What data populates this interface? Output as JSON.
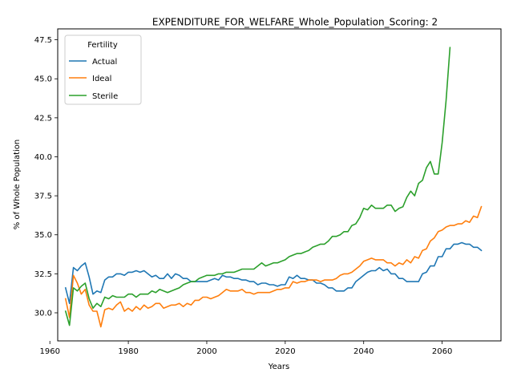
{
  "chart_data": {
    "type": "line",
    "title": "EXPENDITURE_FOR_WELFARE_Whole_Population_Scoring: 2",
    "xlabel": "Years",
    "ylabel": "% of Whole Population",
    "xlim": [
      1962,
      2075
    ],
    "ylim": [
      28.2,
      48.2
    ],
    "xticks": [
      1960,
      1980,
      2000,
      2020,
      2040,
      2060
    ],
    "yticks": [
      30.0,
      32.5,
      35.0,
      37.5,
      40.0,
      42.5,
      45.0,
      47.5
    ],
    "ytick_labels": [
      "30.0",
      "32.5",
      "35.0",
      "37.5",
      "40.0",
      "42.5",
      "45.0",
      "47.5"
    ],
    "grid": false,
    "legend": {
      "title": "Fertility",
      "position": "top-left"
    },
    "series": [
      {
        "name": "Actual",
        "color": "#1f77b4",
        "points": [
          [
            1964,
            31.6
          ],
          [
            1965,
            30.6
          ],
          [
            1966,
            32.9
          ],
          [
            1967,
            32.7
          ],
          [
            1968,
            33.0
          ],
          [
            1969,
            33.2
          ],
          [
            1970,
            32.3
          ],
          [
            1971,
            31.2
          ],
          [
            1972,
            31.4
          ],
          [
            1973,
            31.3
          ],
          [
            1974,
            32.1
          ],
          [
            1975,
            32.3
          ],
          [
            1976,
            32.3
          ],
          [
            1977,
            32.5
          ],
          [
            1978,
            32.5
          ],
          [
            1979,
            32.4
          ],
          [
            1980,
            32.6
          ],
          [
            1981,
            32.6
          ],
          [
            1982,
            32.7
          ],
          [
            1983,
            32.6
          ],
          [
            1984,
            32.7
          ],
          [
            1985,
            32.5
          ],
          [
            1986,
            32.3
          ],
          [
            1987,
            32.4
          ],
          [
            1988,
            32.2
          ],
          [
            1989,
            32.2
          ],
          [
            1990,
            32.5
          ],
          [
            1991,
            32.2
          ],
          [
            1992,
            32.5
          ],
          [
            1993,
            32.4
          ],
          [
            1994,
            32.2
          ],
          [
            1995,
            32.2
          ],
          [
            1996,
            32.0
          ],
          [
            1997,
            32.0
          ],
          [
            1998,
            32.0
          ],
          [
            1999,
            32.0
          ],
          [
            2000,
            32.0
          ],
          [
            2001,
            32.1
          ],
          [
            2002,
            32.2
          ],
          [
            2003,
            32.1
          ],
          [
            2004,
            32.4
          ],
          [
            2005,
            32.3
          ],
          [
            2006,
            32.3
          ],
          [
            2007,
            32.2
          ],
          [
            2008,
            32.2
          ],
          [
            2009,
            32.1
          ],
          [
            2010,
            32.1
          ],
          [
            2011,
            32.0
          ],
          [
            2012,
            32.0
          ],
          [
            2013,
            31.8
          ],
          [
            2014,
            31.9
          ],
          [
            2015,
            31.9
          ],
          [
            2016,
            31.8
          ],
          [
            2017,
            31.8
          ],
          [
            2018,
            31.7
          ],
          [
            2019,
            31.8
          ],
          [
            2020,
            31.8
          ],
          [
            2021,
            32.3
          ],
          [
            2022,
            32.2
          ],
          [
            2023,
            32.4
          ],
          [
            2024,
            32.2
          ],
          [
            2025,
            32.2
          ],
          [
            2026,
            32.1
          ],
          [
            2027,
            32.1
          ],
          [
            2028,
            31.9
          ],
          [
            2029,
            31.9
          ],
          [
            2030,
            31.8
          ],
          [
            2031,
            31.6
          ],
          [
            2032,
            31.6
          ],
          [
            2033,
            31.4
          ],
          [
            2034,
            31.4
          ],
          [
            2035,
            31.4
          ],
          [
            2036,
            31.6
          ],
          [
            2037,
            31.6
          ],
          [
            2038,
            32.0
          ],
          [
            2039,
            32.2
          ],
          [
            2040,
            32.4
          ],
          [
            2041,
            32.6
          ],
          [
            2042,
            32.7
          ],
          [
            2043,
            32.7
          ],
          [
            2044,
            32.9
          ],
          [
            2045,
            32.7
          ],
          [
            2046,
            32.8
          ],
          [
            2047,
            32.5
          ],
          [
            2048,
            32.5
          ],
          [
            2049,
            32.2
          ],
          [
            2050,
            32.2
          ],
          [
            2051,
            32.0
          ],
          [
            2052,
            32.0
          ],
          [
            2053,
            32.0
          ],
          [
            2054,
            32.0
          ],
          [
            2055,
            32.5
          ],
          [
            2056,
            32.6
          ],
          [
            2057,
            33.0
          ],
          [
            2058,
            33.0
          ],
          [
            2059,
            33.6
          ],
          [
            2060,
            33.6
          ],
          [
            2061,
            34.1
          ],
          [
            2062,
            34.1
          ],
          [
            2063,
            34.4
          ],
          [
            2064,
            34.4
          ],
          [
            2065,
            34.5
          ],
          [
            2066,
            34.4
          ],
          [
            2067,
            34.4
          ],
          [
            2068,
            34.2
          ],
          [
            2069,
            34.2
          ],
          [
            2070,
            34.0
          ]
        ]
      },
      {
        "name": "Ideal",
        "color": "#ff7f0e",
        "points": [
          [
            1964,
            30.9
          ],
          [
            1965,
            29.7
          ],
          [
            1966,
            32.4
          ],
          [
            1967,
            31.9
          ],
          [
            1968,
            31.2
          ],
          [
            1969,
            31.5
          ],
          [
            1970,
            30.5
          ],
          [
            1971,
            30.1
          ],
          [
            1972,
            30.1
          ],
          [
            1973,
            29.1
          ],
          [
            1974,
            30.2
          ],
          [
            1975,
            30.3
          ],
          [
            1976,
            30.2
          ],
          [
            1977,
            30.5
          ],
          [
            1978,
            30.7
          ],
          [
            1979,
            30.1
          ],
          [
            1980,
            30.3
          ],
          [
            1981,
            30.1
          ],
          [
            1982,
            30.4
          ],
          [
            1983,
            30.2
          ],
          [
            1984,
            30.5
          ],
          [
            1985,
            30.3
          ],
          [
            1986,
            30.4
          ],
          [
            1987,
            30.6
          ],
          [
            1988,
            30.6
          ],
          [
            1989,
            30.3
          ],
          [
            1990,
            30.4
          ],
          [
            1991,
            30.5
          ],
          [
            1992,
            30.5
          ],
          [
            1993,
            30.6
          ],
          [
            1994,
            30.4
          ],
          [
            1995,
            30.6
          ],
          [
            1996,
            30.5
          ],
          [
            1997,
            30.8
          ],
          [
            1998,
            30.8
          ],
          [
            1999,
            31.0
          ],
          [
            2000,
            31.0
          ],
          [
            2001,
            30.9
          ],
          [
            2002,
            31.0
          ],
          [
            2003,
            31.1
          ],
          [
            2004,
            31.3
          ],
          [
            2005,
            31.5
          ],
          [
            2006,
            31.4
          ],
          [
            2007,
            31.4
          ],
          [
            2008,
            31.4
          ],
          [
            2009,
            31.5
          ],
          [
            2010,
            31.3
          ],
          [
            2011,
            31.3
          ],
          [
            2012,
            31.2
          ],
          [
            2013,
            31.3
          ],
          [
            2014,
            31.3
          ],
          [
            2015,
            31.3
          ],
          [
            2016,
            31.3
          ],
          [
            2017,
            31.4
          ],
          [
            2018,
            31.5
          ],
          [
            2019,
            31.5
          ],
          [
            2020,
            31.6
          ],
          [
            2021,
            31.6
          ],
          [
            2022,
            32.0
          ],
          [
            2023,
            31.9
          ],
          [
            2024,
            32.0
          ],
          [
            2025,
            32.0
          ],
          [
            2026,
            32.1
          ],
          [
            2027,
            32.1
          ],
          [
            2028,
            32.1
          ],
          [
            2029,
            32.0
          ],
          [
            2030,
            32.1
          ],
          [
            2031,
            32.1
          ],
          [
            2032,
            32.1
          ],
          [
            2033,
            32.2
          ],
          [
            2034,
            32.4
          ],
          [
            2035,
            32.5
          ],
          [
            2036,
            32.5
          ],
          [
            2037,
            32.6
          ],
          [
            2038,
            32.8
          ],
          [
            2039,
            33.0
          ],
          [
            2040,
            33.3
          ],
          [
            2041,
            33.4
          ],
          [
            2042,
            33.5
          ],
          [
            2043,
            33.4
          ],
          [
            2044,
            33.4
          ],
          [
            2045,
            33.4
          ],
          [
            2046,
            33.2
          ],
          [
            2047,
            33.2
          ],
          [
            2048,
            33.0
          ],
          [
            2049,
            33.2
          ],
          [
            2050,
            33.1
          ],
          [
            2051,
            33.4
          ],
          [
            2052,
            33.2
          ],
          [
            2053,
            33.6
          ],
          [
            2054,
            33.5
          ],
          [
            2055,
            34.0
          ],
          [
            2056,
            34.1
          ],
          [
            2057,
            34.6
          ],
          [
            2058,
            34.8
          ],
          [
            2059,
            35.2
          ],
          [
            2060,
            35.3
          ],
          [
            2061,
            35.5
          ],
          [
            2062,
            35.6
          ],
          [
            2063,
            35.6
          ],
          [
            2064,
            35.7
          ],
          [
            2065,
            35.7
          ],
          [
            2066,
            35.9
          ],
          [
            2067,
            35.8
          ],
          [
            2068,
            36.2
          ],
          [
            2069,
            36.1
          ],
          [
            2070,
            36.8
          ]
        ]
      },
      {
        "name": "Sterile",
        "color": "#2ca02c",
        "points": [
          [
            1964,
            30.1
          ],
          [
            1965,
            29.2
          ],
          [
            1966,
            31.6
          ],
          [
            1967,
            31.4
          ],
          [
            1968,
            31.7
          ],
          [
            1969,
            31.9
          ],
          [
            1970,
            30.9
          ],
          [
            1971,
            30.3
          ],
          [
            1972,
            30.6
          ],
          [
            1973,
            30.4
          ],
          [
            1974,
            31.0
          ],
          [
            1975,
            30.9
          ],
          [
            1976,
            31.1
          ],
          [
            1977,
            31.0
          ],
          [
            1978,
            31.0
          ],
          [
            1979,
            31.0
          ],
          [
            1980,
            31.2
          ],
          [
            1981,
            31.2
          ],
          [
            1982,
            31.0
          ],
          [
            1983,
            31.2
          ],
          [
            1984,
            31.2
          ],
          [
            1985,
            31.2
          ],
          [
            1986,
            31.4
          ],
          [
            1987,
            31.3
          ],
          [
            1988,
            31.5
          ],
          [
            1989,
            31.4
          ],
          [
            1990,
            31.3
          ],
          [
            1991,
            31.4
          ],
          [
            1992,
            31.5
          ],
          [
            1993,
            31.6
          ],
          [
            1994,
            31.8
          ],
          [
            1995,
            31.9
          ],
          [
            1996,
            32.0
          ],
          [
            1997,
            32.0
          ],
          [
            1998,
            32.2
          ],
          [
            1999,
            32.3
          ],
          [
            2000,
            32.4
          ],
          [
            2001,
            32.4
          ],
          [
            2002,
            32.4
          ],
          [
            2003,
            32.5
          ],
          [
            2004,
            32.5
          ],
          [
            2005,
            32.6
          ],
          [
            2006,
            32.6
          ],
          [
            2007,
            32.6
          ],
          [
            2008,
            32.7
          ],
          [
            2009,
            32.8
          ],
          [
            2010,
            32.8
          ],
          [
            2011,
            32.8
          ],
          [
            2012,
            32.8
          ],
          [
            2013,
            33.0
          ],
          [
            2014,
            33.2
          ],
          [
            2015,
            33.0
          ],
          [
            2016,
            33.1
          ],
          [
            2017,
            33.2
          ],
          [
            2018,
            33.2
          ],
          [
            2019,
            33.3
          ],
          [
            2020,
            33.4
          ],
          [
            2021,
            33.6
          ],
          [
            2022,
            33.7
          ],
          [
            2023,
            33.8
          ],
          [
            2024,
            33.8
          ],
          [
            2025,
            33.9
          ],
          [
            2026,
            34.0
          ],
          [
            2027,
            34.2
          ],
          [
            2028,
            34.3
          ],
          [
            2029,
            34.4
          ],
          [
            2030,
            34.4
          ],
          [
            2031,
            34.6
          ],
          [
            2032,
            34.9
          ],
          [
            2033,
            34.9
          ],
          [
            2034,
            35.0
          ],
          [
            2035,
            35.2
          ],
          [
            2036,
            35.2
          ],
          [
            2037,
            35.6
          ],
          [
            2038,
            35.7
          ],
          [
            2039,
            36.1
          ],
          [
            2040,
            36.7
          ],
          [
            2041,
            36.6
          ],
          [
            2042,
            36.9
          ],
          [
            2043,
            36.7
          ],
          [
            2044,
            36.7
          ],
          [
            2045,
            36.7
          ],
          [
            2046,
            36.9
          ],
          [
            2047,
            36.9
          ],
          [
            2048,
            36.5
          ],
          [
            2049,
            36.7
          ],
          [
            2050,
            36.8
          ],
          [
            2051,
            37.4
          ],
          [
            2052,
            37.8
          ],
          [
            2053,
            37.5
          ],
          [
            2054,
            38.3
          ],
          [
            2055,
            38.5
          ],
          [
            2056,
            39.3
          ],
          [
            2057,
            39.7
          ],
          [
            2058,
            38.9
          ],
          [
            2059,
            38.9
          ],
          [
            2060,
            40.9
          ],
          [
            2061,
            43.6
          ],
          [
            2062,
            47.0
          ]
        ]
      }
    ]
  }
}
